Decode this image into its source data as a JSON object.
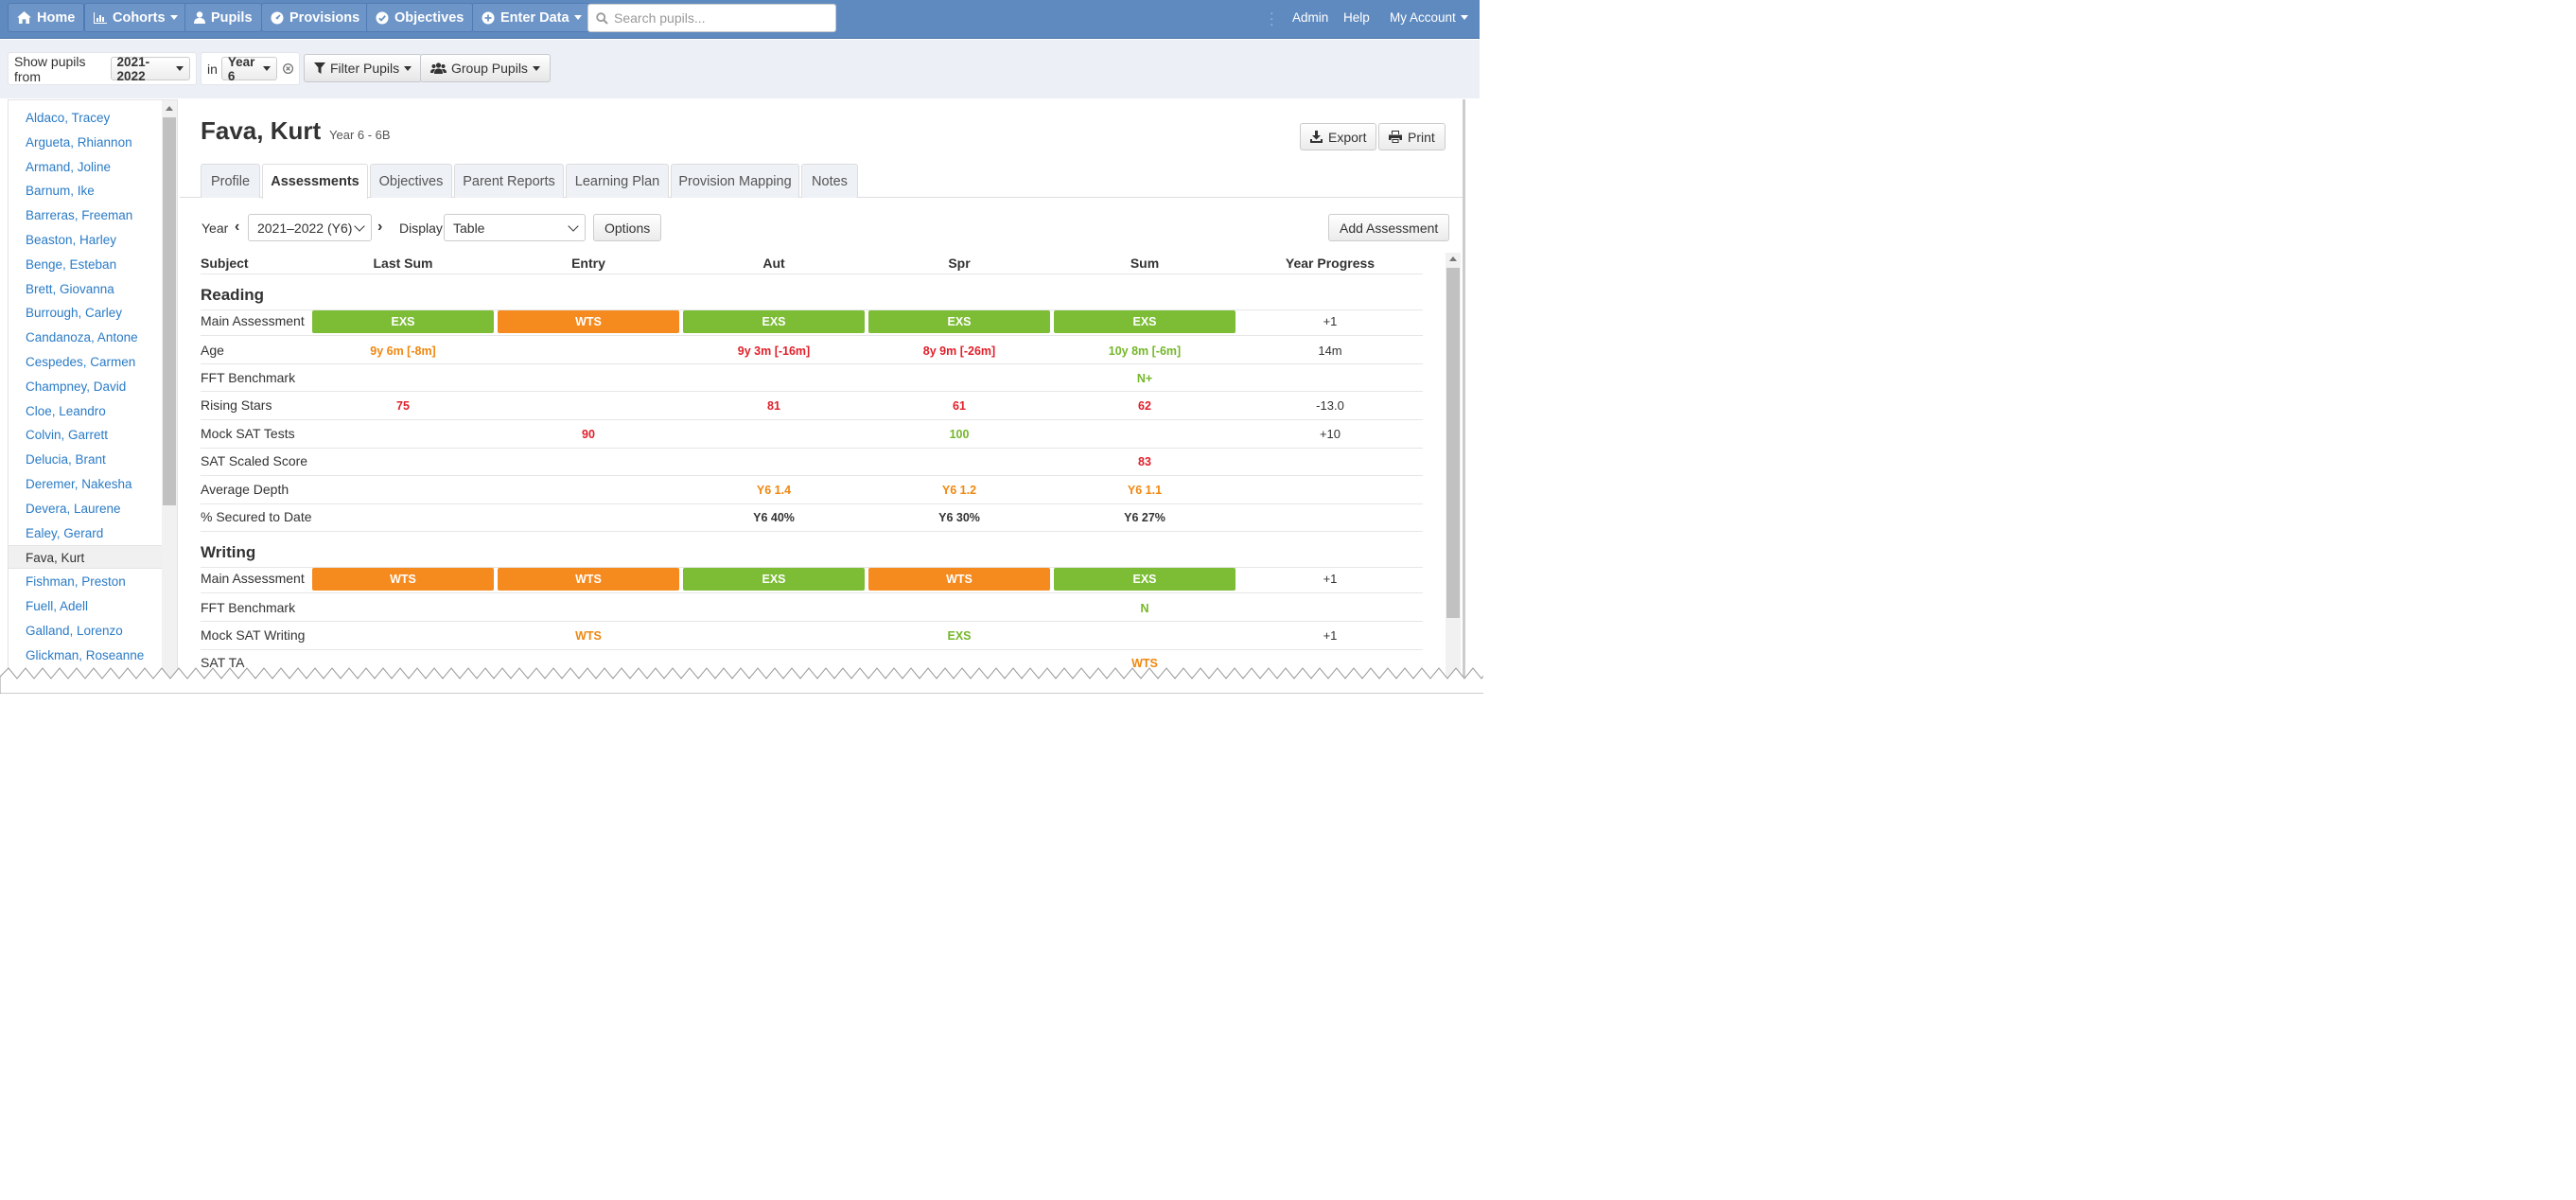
{
  "nav": {
    "home": "Home",
    "cohorts": "Cohorts",
    "pupils": "Pupils",
    "provisions": "Provisions",
    "objectives": "Objectives",
    "enter_data": "Enter Data",
    "search_placeholder": "Search pupils...",
    "admin": "Admin",
    "help": "Help",
    "my_account": "My Account"
  },
  "filters": {
    "show_from_label": "Show pupils from",
    "year_value": "2021-2022",
    "in_label": "in",
    "group_value": "Year 6",
    "filter_pupils": "Filter Pupils",
    "group_pupils": "Group Pupils"
  },
  "pupils": [
    "Aldaco, Tracey",
    "Argueta, Rhiannon",
    "Armand, Joline",
    "Barnum, Ike",
    "Barreras, Freeman",
    "Beaston, Harley",
    "Benge, Esteban",
    "Brett, Giovanna",
    "Burrough, Carley",
    "Candanoza, Antone",
    "Cespedes, Carmen",
    "Champney, David",
    "Cloe, Leandro",
    "Colvin, Garrett",
    "Delucia, Brant",
    "Deremer, Nakesha",
    "Devera, Laurene",
    "Ealey, Gerard",
    "Fava, Kurt",
    "Fishman, Preston",
    "Fuell, Adell",
    "Galland, Lorenzo",
    "Glickman, Roseanne"
  ],
  "pupil": {
    "name": "Fava, Kurt",
    "class": "Year 6 - 6B"
  },
  "actions": {
    "export": "Export",
    "print": "Print"
  },
  "tabs": [
    "Profile",
    "Assessments",
    "Objectives",
    "Parent Reports",
    "Learning Plan",
    "Provision Mapping",
    "Notes"
  ],
  "controls": {
    "year_label": "Year",
    "year_value": "2021–2022 (Y6)",
    "display_label": "Display",
    "display_value": "Table",
    "options": "Options",
    "add_assessment": "Add Assessment"
  },
  "columns": [
    "Subject",
    "Last Sum",
    "Entry",
    "Aut",
    "Spr",
    "Sum",
    "Year Progress"
  ],
  "colors": {
    "exs": "#7cbd35",
    "wts": "#f58a1f",
    "red": "#e0202a",
    "orange": "#f0870f",
    "green": "#75b72a"
  },
  "reading": {
    "title": "Reading",
    "rows": [
      {
        "label": "Main Assessment",
        "cells": [
          "EXS",
          "WTS",
          "EXS",
          "EXS",
          "EXS"
        ],
        "progress": "+1"
      },
      {
        "label": "Age",
        "cells": [
          "9y 6m [-8m]",
          "",
          "9y 3m [-16m]",
          "8y 9m [-26m]",
          "10y 8m [-6m]"
        ],
        "progress": "14m"
      },
      {
        "label": "FFT Benchmark",
        "cells": [
          "",
          "",
          "",
          "",
          "N+"
        ],
        "progress": ""
      },
      {
        "label": "Rising Stars",
        "cells": [
          "75",
          "",
          "81",
          "61",
          "62"
        ],
        "progress": "-13.0"
      },
      {
        "label": "Mock SAT Tests",
        "cells": [
          "",
          "90",
          "",
          "100",
          ""
        ],
        "progress": "+10"
      },
      {
        "label": "SAT Scaled Score",
        "cells": [
          "",
          "",
          "",
          "",
          "83"
        ],
        "progress": ""
      },
      {
        "label": "Average Depth",
        "cells": [
          "",
          "",
          "Y6 1.4",
          "Y6 1.2",
          "Y6 1.1"
        ],
        "progress": ""
      },
      {
        "label": "% Secured to Date",
        "cells": [
          "",
          "",
          "Y6 40%",
          "Y6 30%",
          "Y6 27%"
        ],
        "progress": ""
      }
    ]
  },
  "writing": {
    "title": "Writing",
    "rows": [
      {
        "label": "Main Assessment",
        "cells": [
          "WTS",
          "WTS",
          "EXS",
          "WTS",
          "EXS"
        ],
        "progress": "+1"
      },
      {
        "label": "FFT Benchmark",
        "cells": [
          "",
          "",
          "",
          "",
          "N"
        ],
        "progress": ""
      },
      {
        "label": "Mock SAT Writing",
        "cells": [
          "",
          "WTS",
          "",
          "EXS",
          ""
        ],
        "progress": "+1"
      },
      {
        "label": "SAT TA",
        "cells": [
          "",
          "",
          "",
          "",
          "WTS"
        ],
        "progress": ""
      }
    ]
  }
}
